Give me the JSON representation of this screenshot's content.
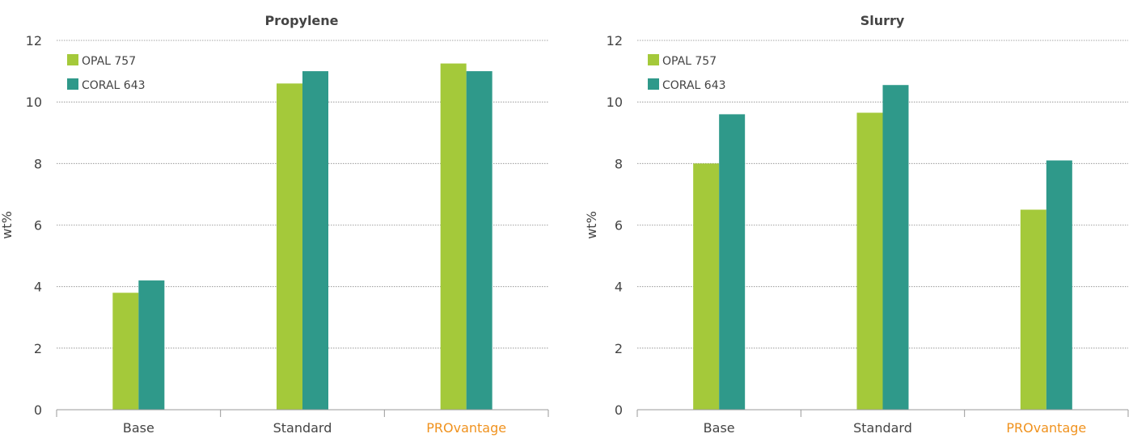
{
  "chart_data": [
    {
      "type": "bar",
      "title": "Propylene",
      "xlabel": "",
      "ylabel": "wt%",
      "ylim": [
        0,
        12
      ],
      "yticks": [
        0,
        2,
        4,
        6,
        8,
        10,
        12
      ],
      "grid": true,
      "legend_position": "top-left",
      "categories": [
        "Base",
        "Standard",
        "PROvantage"
      ],
      "highlight_category": "PROvantage",
      "series": [
        {
          "name": "OPAL 757",
          "values": [
            3.8,
            10.6,
            11.25
          ]
        },
        {
          "name": "CORAL 643",
          "values": [
            4.2,
            11.0,
            11.0
          ]
        }
      ]
    },
    {
      "type": "bar",
      "title": "Slurry",
      "xlabel": "",
      "ylabel": "wt%",
      "ylim": [
        0,
        12
      ],
      "yticks": [
        0,
        2,
        4,
        6,
        8,
        10,
        12
      ],
      "grid": true,
      "legend_position": "top-left",
      "categories": [
        "Base",
        "Standard",
        "PROvantage"
      ],
      "highlight_category": "PROvantage",
      "series": [
        {
          "name": "OPAL 757",
          "values": [
            8.0,
            9.65,
            6.5
          ]
        },
        {
          "name": "CORAL 643",
          "values": [
            9.6,
            10.55,
            8.1
          ]
        }
      ]
    }
  ],
  "colors": {
    "series": [
      "#a4c93a",
      "#2f998a"
    ],
    "highlight_label": "#f0921e",
    "text": "#444444",
    "grid": "#888888",
    "axis": "#9a9a9a"
  }
}
